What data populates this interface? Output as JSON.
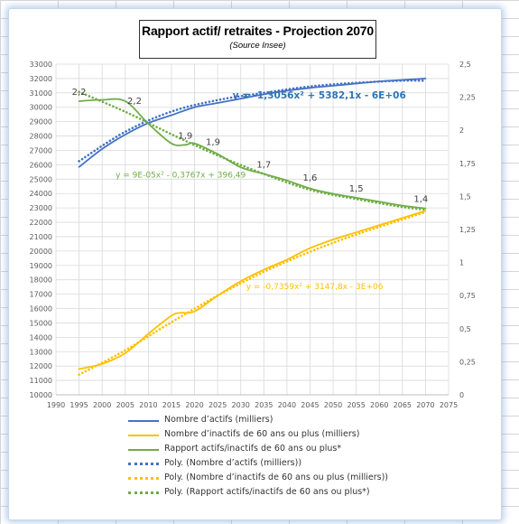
{
  "chart_data": {
    "type": "line",
    "title": "Rapport actif/ retraites - Projection 2070",
    "subtitle": "(Source Insee)",
    "x_axis": {
      "min": 1990,
      "max": 2075,
      "ticks": [
        1990,
        1995,
        2000,
        2005,
        2010,
        2015,
        2020,
        2025,
        2030,
        2035,
        2040,
        2045,
        2050,
        2055,
        2060,
        2065,
        2070,
        2075
      ]
    },
    "y_left": {
      "min": 10000,
      "max": 33000,
      "step": 1000
    },
    "y_right": {
      "min": 0,
      "max": 2.5,
      "ticks": [
        "0",
        "0,25",
        "0,5",
        "0,75",
        "1",
        "1,25",
        "1,5",
        "1,75",
        "2",
        "2,25",
        "2,5"
      ]
    },
    "grid": "horizontal+vertical",
    "legend_position": "bottom",
    "series": [
      {
        "name": "Nombre d’actifs (milliers)",
        "color": "#4472c4",
        "axis": "left",
        "style": "solid",
        "x": [
          1995,
          2000,
          2005,
          2010,
          2015,
          2020,
          2025,
          2030,
          2035,
          2040,
          2045,
          2050,
          2055,
          2060,
          2065,
          2070
        ],
        "values": [
          25850,
          27100,
          28100,
          28900,
          29450,
          30000,
          30300,
          30600,
          30900,
          31150,
          31350,
          31500,
          31650,
          31800,
          31900,
          32000
        ]
      },
      {
        "name": "Nombre d’inactifs de 60 ans ou plus (milliers)",
        "color": "#ffc000",
        "axis": "left",
        "style": "solid",
        "x": [
          1995,
          2000,
          2005,
          2010,
          2015,
          2017,
          2020,
          2025,
          2030,
          2035,
          2040,
          2045,
          2050,
          2055,
          2060,
          2065,
          2070
        ],
        "values": [
          11800,
          12150,
          12900,
          14250,
          15500,
          15700,
          15800,
          16900,
          17900,
          18700,
          19400,
          20200,
          20800,
          21300,
          21800,
          22300,
          22800
        ]
      },
      {
        "name": "Rapport  actifs/inactifs de 60 ans ou plus*",
        "color": "#70ad47",
        "axis": "right",
        "style": "solid",
        "x": [
          1995,
          2000,
          2005,
          2010,
          2015,
          2018,
          2020,
          2025,
          2030,
          2035,
          2040,
          2045,
          2050,
          2055,
          2060,
          2065,
          2070
        ],
        "values": [
          2.22,
          2.23,
          2.22,
          2.05,
          1.9,
          1.89,
          1.9,
          1.82,
          1.72,
          1.67,
          1.62,
          1.56,
          1.52,
          1.49,
          1.46,
          1.43,
          1.41
        ],
        "data_labels": [
          {
            "x": 1995,
            "y": 2.22,
            "text": "2,2"
          },
          {
            "x": 2007,
            "y": 2.15,
            "text": "2,2"
          },
          {
            "x": 2018,
            "y": 1.89,
            "text": "1,9"
          },
          {
            "x": 2024,
            "y": 1.84,
            "text": "1,9"
          },
          {
            "x": 2035,
            "y": 1.67,
            "text": "1,7"
          },
          {
            "x": 2045,
            "y": 1.57,
            "text": "1,6"
          },
          {
            "x": 2055,
            "y": 1.49,
            "text": "1,5"
          },
          {
            "x": 2069,
            "y": 1.41,
            "text": "1,4"
          }
        ]
      },
      {
        "name": "Poly. (Nombre d’actifs (milliers))",
        "color": "#4472c4",
        "axis": "left",
        "style": "dotted",
        "x": [
          1995,
          2005,
          2015,
          2025,
          2035,
          2045,
          2055,
          2065,
          2070
        ],
        "values": [
          26250,
          28300,
          29700,
          30500,
          31000,
          31450,
          31700,
          31850,
          31850
        ]
      },
      {
        "name": "Poly. (Nombre d’inactifs de 60 ans ou plus (milliers))",
        "color": "#ffc000",
        "axis": "left",
        "style": "dotted",
        "x": [
          1995,
          2005,
          2015,
          2025,
          2035,
          2045,
          2055,
          2065,
          2070
        ],
        "values": [
          11400,
          13100,
          15050,
          16900,
          18550,
          19950,
          21150,
          22200,
          22700
        ]
      },
      {
        "name": "Poly. (Rapport  actifs/inactifs de 60 ans ou plus*)",
        "color": "#70ad47",
        "axis": "right",
        "style": "dotted",
        "x": [
          1995,
          2005,
          2015,
          2025,
          2035,
          2045,
          2055,
          2065,
          2070
        ],
        "values": [
          2.29,
          2.14,
          1.97,
          1.81,
          1.67,
          1.55,
          1.48,
          1.42,
          1.4
        ]
      }
    ],
    "annotations": [
      {
        "text": "y = -1,3056x² + 5382,1x - 6E+06",
        "color": "#2e75b6",
        "anchor_x": 2047,
        "anchor_y_left": 30600
      },
      {
        "text": "y = 9E-05x² - 0,3767x + 396,49",
        "color": "#70ad47",
        "anchor_x": 2017,
        "anchor_y_left": 25100
      },
      {
        "text": "y = -0,7359x² + 3147,8x - 3E+06",
        "color": "#ffc000",
        "anchor_x": 2046,
        "anchor_y_left": 17350
      }
    ]
  }
}
